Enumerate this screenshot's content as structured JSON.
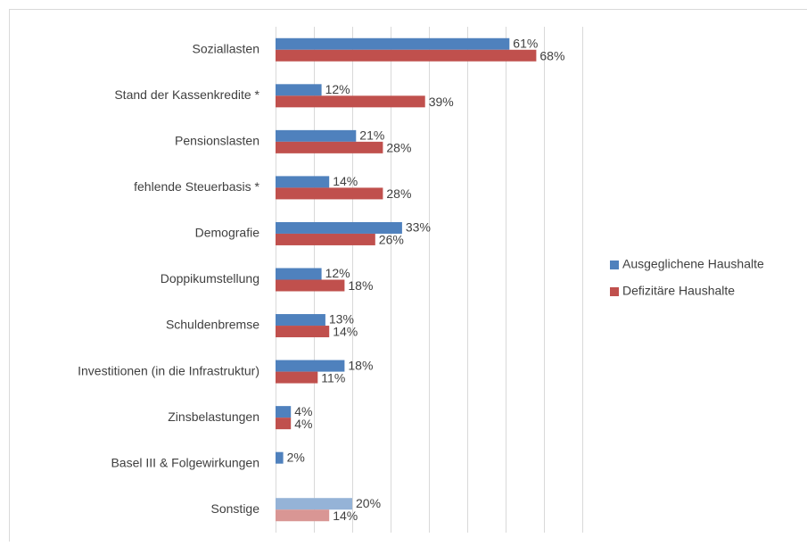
{
  "chart_data": {
    "type": "barh",
    "categories": [
      "Soziallasten",
      "Stand der Kassenkredite *",
      "Pensionslasten",
      "fehlende Steuerbasis *",
      "Demografie",
      "Doppikumstellung",
      "Schuldenbremse",
      "Investitionen (in die Infrastruktur)",
      "Zinsbelastungen",
      "Basel III & Folgewirkungen",
      "Sonstige"
    ],
    "series": [
      {
        "name": "Ausgeglichene Haushalte",
        "color": "#4f81bd",
        "colors": [
          "#4f81bd",
          "#4f81bd",
          "#4f81bd",
          "#4f81bd",
          "#4f81bd",
          "#4f81bd",
          "#4f81bd",
          "#4f81bd",
          "#4f81bd",
          "#4f81bd",
          "#95b3d7"
        ],
        "values": [
          61,
          12,
          21,
          14,
          33,
          12,
          13,
          18,
          4,
          2,
          20
        ],
        "value_labels": [
          "61%",
          "12%",
          "21%",
          "14%",
          "33%",
          "12%",
          "13%",
          "18%",
          "4%",
          "2%",
          "20%"
        ]
      },
      {
        "name": "Defizitäre Haushalte",
        "color": "#c0504d",
        "colors": [
          "#c0504d",
          "#c0504d",
          "#c0504d",
          "#c0504d",
          "#c0504d",
          "#c0504d",
          "#c0504d",
          "#c0504d",
          "#c0504d",
          "#c0504d",
          "#d99694"
        ],
        "values": [
          68,
          39,
          28,
          28,
          26,
          18,
          14,
          11,
          4,
          null,
          14
        ],
        "value_labels": [
          "68%",
          "39%",
          "28%",
          "28%",
          "26%",
          "18%",
          "14%",
          "11%",
          "4%",
          null,
          "14%"
        ]
      }
    ],
    "xlim": [
      0,
      80
    ],
    "xticks": [
      0,
      10,
      20,
      30,
      40,
      50,
      60,
      70,
      80
    ],
    "grid": true,
    "legend": "right"
  }
}
